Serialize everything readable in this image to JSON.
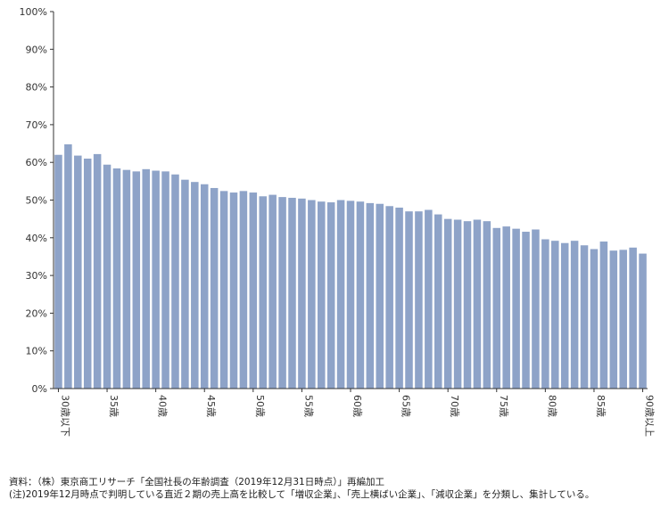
{
  "chart_data": {
    "type": "bar",
    "x_tick_labels": [
      "30歳以下",
      "35歳",
      "40歳",
      "45歳",
      "50歳",
      "55歳",
      "60歳",
      "65歳",
      "70歳",
      "75歳",
      "80歳",
      "85歳",
      "90歳以上"
    ],
    "x_tick_every": 5,
    "values": [
      62.0,
      64.8,
      61.8,
      61.0,
      62.2,
      59.4,
      58.4,
      58.0,
      57.6,
      58.2,
      57.8,
      57.6,
      56.8,
      55.4,
      54.8,
      54.2,
      53.2,
      52.4,
      52.0,
      52.4,
      52.0,
      51.0,
      51.4,
      50.8,
      50.6,
      50.4,
      50.0,
      49.6,
      49.4,
      50.0,
      49.8,
      49.6,
      49.2,
      49.0,
      48.4,
      48.0,
      47.0,
      47.0,
      47.4,
      46.2,
      45.0,
      44.8,
      44.4,
      44.8,
      44.4,
      42.6,
      43.0,
      42.4,
      41.6,
      42.2,
      39.6,
      39.2,
      38.6,
      39.2,
      38.0,
      37.0,
      39.0,
      36.6,
      36.8,
      37.4,
      35.8
    ],
    "ylim": [
      0,
      100
    ],
    "y_ticks": [
      0,
      10,
      20,
      30,
      40,
      50,
      60,
      70,
      80,
      90,
      100
    ],
    "y_tick_format": "{v}%",
    "bar_color": "#8ea3c8",
    "grid": false
  },
  "footnotes": {
    "source": "資料：（株）東京商工リサーチ「全国社長の年齢調査（2019年12月31日時点）」再編加工",
    "note": "(注)2019年12月時点で判明している直近２期の売上高を比較して「増収企業」、「売上横ばい企業」、「減収企業」を分類し、集計している。"
  }
}
